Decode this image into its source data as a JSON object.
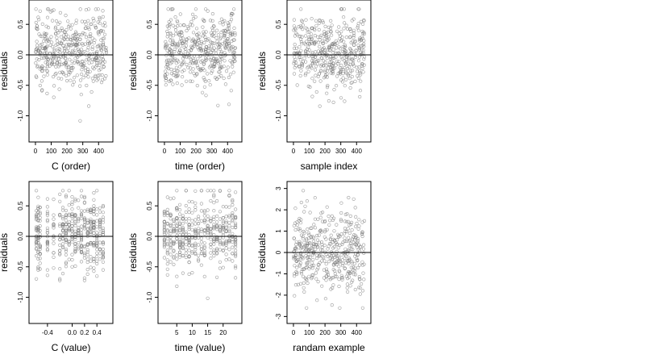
{
  "chart_data": [
    {
      "type": "scatter",
      "xlabel": "C (order)",
      "ylabel": "residuals",
      "xlim": [
        -10,
        460
      ],
      "ylim": [
        -1.35,
        0.82
      ],
      "xticks": [
        0,
        100,
        200,
        300,
        400
      ],
      "yticks": [
        -1.0,
        -0.5,
        0.0,
        0.5
      ],
      "ytick_labels": [
        "-1.0",
        "-0.5",
        "0.0",
        "0.5"
      ],
      "hline": 0,
      "points": {
        "generator": "order",
        "n": 450,
        "seed": 11,
        "x_range": [
          1,
          450
        ],
        "y_range": [
          -1.3,
          0.75
        ],
        "spread": 0.3
      }
    },
    {
      "type": "scatter",
      "xlabel": "time (order)",
      "ylabel": "residuals",
      "xlim": [
        -10,
        460
      ],
      "ylim": [
        -1.35,
        0.82
      ],
      "xticks": [
        0,
        100,
        200,
        300,
        400
      ],
      "yticks": [
        -1.0,
        -0.5,
        0.0,
        0.5
      ],
      "ytick_labels": [
        "-1.0",
        "-0.5",
        "0.0",
        "0.5"
      ],
      "hline": 0,
      "points": {
        "generator": "order",
        "n": 450,
        "seed": 23,
        "x_range": [
          1,
          450
        ],
        "y_range": [
          -1.3,
          0.75
        ],
        "spread": 0.3
      }
    },
    {
      "type": "scatter",
      "xlabel": "sample index",
      "ylabel": "residuals",
      "xlim": [
        -10,
        460
      ],
      "ylim": [
        -1.35,
        0.82
      ],
      "xticks": [
        0,
        100,
        200,
        300,
        400
      ],
      "yticks": [
        -1.0,
        -0.5,
        0.0,
        0.5
      ],
      "ytick_labels": [
        "-1.0",
        "-0.5",
        "0.0",
        "0.5"
      ],
      "hline": 0,
      "points": {
        "generator": "order",
        "n": 450,
        "seed": 37,
        "x_range": [
          1,
          450
        ],
        "y_range": [
          -1.3,
          0.75
        ],
        "spread": 0.3
      }
    },
    {
      "type": "scatter",
      "xlabel": "C (value)",
      "ylabel": "residuals",
      "xlim": [
        -0.62,
        0.58
      ],
      "ylim": [
        -1.35,
        0.82
      ],
      "xticks": [
        -0.4,
        0.0,
        0.2,
        0.4
      ],
      "xtick_labels": [
        "-0.4",
        "0.0",
        "0.2",
        "0.4"
      ],
      "yticks": [
        -1.0,
        -0.5,
        0.0,
        0.5
      ],
      "ytick_labels": [
        "-1.0",
        "-0.5",
        "0.0",
        "0.5"
      ],
      "hline": 0,
      "points": {
        "generator": "columns",
        "n": 450,
        "seed": 51,
        "columns": [
          -0.58,
          -0.55,
          -0.52,
          -0.4,
          -0.3,
          -0.2,
          -0.15,
          -0.1,
          -0.05,
          0.0,
          0.05,
          0.1,
          0.15,
          0.2,
          0.25,
          0.3,
          0.35,
          0.4,
          0.45,
          0.5
        ],
        "y_range": [
          -1.3,
          0.75
        ],
        "spread": 0.3
      }
    },
    {
      "type": "scatter",
      "xlabel": "time (value)",
      "ylabel": "residuals",
      "xlim": [
        0.5,
        24.5
      ],
      "ylim": [
        -1.35,
        0.82
      ],
      "xticks": [
        5,
        10,
        15,
        20
      ],
      "yticks": [
        -1.0,
        -0.5,
        0.0,
        0.5
      ],
      "ytick_labels": [
        "-1.0",
        "-0.5",
        "0.0",
        "0.5"
      ],
      "hline": 0,
      "points": {
        "generator": "columns",
        "n": 450,
        "seed": 67,
        "columns": [
          1,
          2,
          3,
          4,
          5,
          6,
          7,
          8,
          9,
          10,
          11,
          12,
          13,
          14,
          15,
          16,
          17,
          18,
          19,
          20,
          21,
          22,
          23,
          24
        ],
        "y_range": [
          -1.3,
          0.75
        ],
        "spread": 0.3
      }
    },
    {
      "type": "scatter",
      "xlabel": "randam example",
      "ylabel": "residuals",
      "xlim": [
        -10,
        460
      ],
      "ylim": [
        -3.1,
        3.1
      ],
      "xticks": [
        0,
        100,
        200,
        300,
        400
      ],
      "yticks": [
        -3,
        -2,
        -1,
        0,
        1,
        2,
        3
      ],
      "hline": 0,
      "points": {
        "generator": "order",
        "n": 450,
        "seed": 89,
        "x_range": [
          1,
          450
        ],
        "y_range": [
          -2.6,
          2.9
        ],
        "spread": 1.0
      }
    }
  ]
}
